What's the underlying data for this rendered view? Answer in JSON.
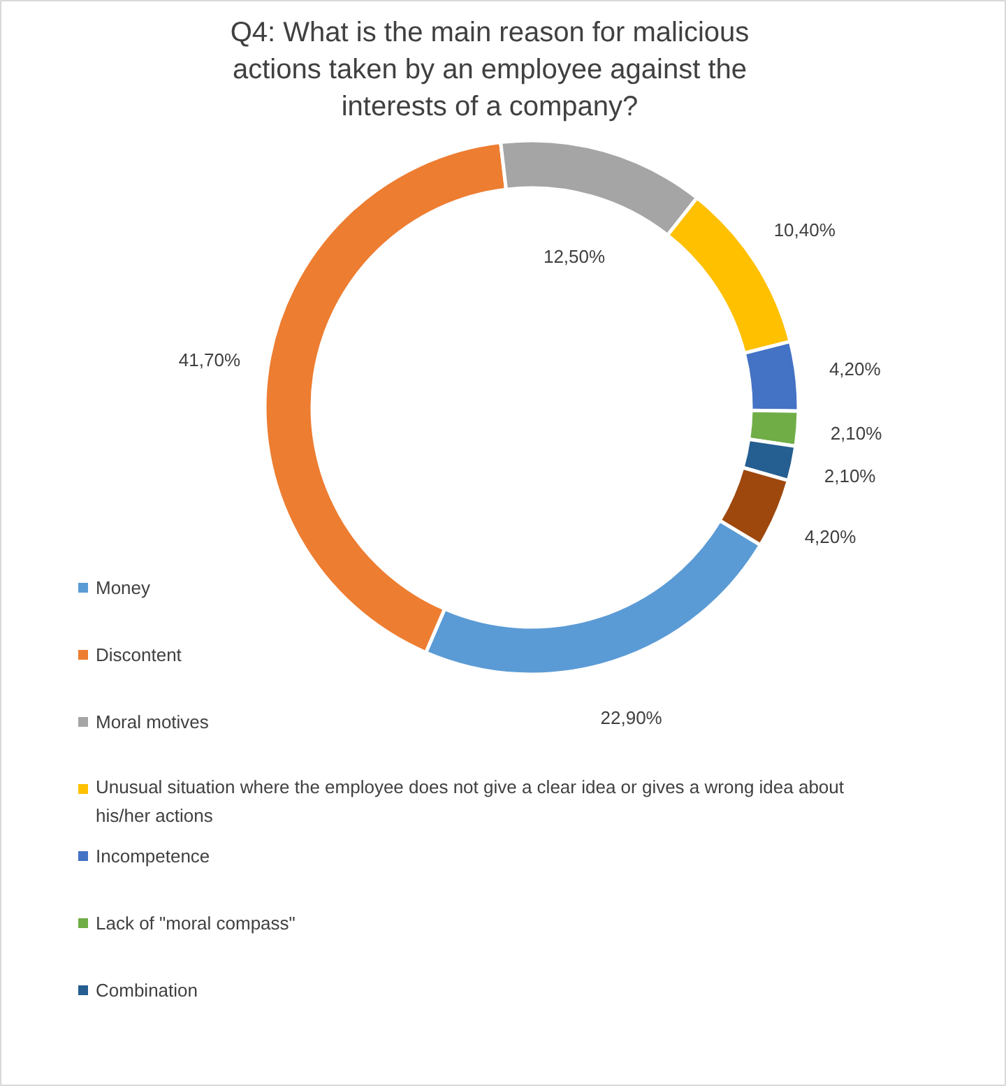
{
  "chart_data": {
    "type": "donut",
    "title": "Q4: What is the main reason for malicious actions taken by an employee against the interests of a company?",
    "categories": [
      "Money",
      "Discontent",
      "Moral motives",
      "Unusual situation where the employee does not give a clear idea or gives a wrong idea about his/her actions",
      "Incompetence",
      "Lack of \"moral compass\"",
      "Combination",
      null
    ],
    "values": [
      22.9,
      41.7,
      12.5,
      10.4,
      4.2,
      2.1,
      2.1,
      4.2
    ],
    "value_labels": [
      "22,90%",
      "41,70%",
      "12,50%",
      "10,40%",
      "4,20%",
      "2,10%",
      "2,10%",
      "4,20%"
    ],
    "colors": [
      "#5b9bd5",
      "#ed7d31",
      "#a5a5a5",
      "#ffc000",
      "#4472c4",
      "#70ad47",
      "#255e91",
      "#9e480e"
    ],
    "legend": "bottom left"
  }
}
